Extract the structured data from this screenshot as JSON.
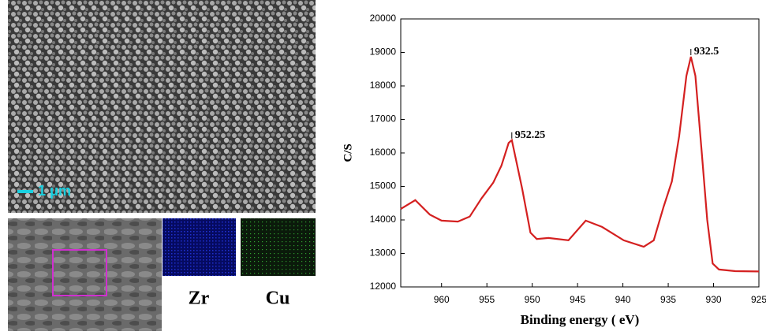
{
  "images": {
    "scale_bar": "1 μm",
    "maps": [
      "Zr",
      "Cu"
    ]
  },
  "chart_data": {
    "type": "line",
    "x_label": "Binding energy (   eV)",
    "y_label": "C/S",
    "x": [
      964.5,
      962.9,
      961.3,
      960.0,
      958.2,
      956.9,
      955.6,
      954.3,
      953.4,
      952.6,
      952.25,
      951.1,
      950.2,
      949.5,
      948.2,
      946.0,
      944.1,
      942.3,
      939.9,
      937.7,
      936.6,
      935.5,
      934.6,
      933.8,
      933.0,
      932.5,
      932.0,
      931.3,
      930.7,
      930.1,
      929.4,
      927.6,
      925.0
    ],
    "series": [
      {
        "name": "C/S",
        "color": "#d42020",
        "values": [
          14330,
          14590,
          14160,
          13980,
          13950,
          14100,
          14640,
          15110,
          15620,
          16300,
          16380,
          14920,
          13620,
          13430,
          13460,
          13390,
          13980,
          13790,
          13390,
          13200,
          13390,
          14400,
          15150,
          16500,
          18300,
          18870,
          18300,
          16000,
          14000,
          12700,
          12520,
          12470,
          12460
        ]
      }
    ],
    "xlim": [
      964.5,
      925
    ],
    "xticks": [
      960,
      955,
      950,
      945,
      940,
      935,
      930,
      925
    ],
    "ylim": [
      12000,
      20000
    ],
    "yticks": [
      12000,
      13000,
      14000,
      15000,
      16000,
      17000,
      18000,
      19000,
      20000
    ],
    "annotations": [
      {
        "text": "952.25",
        "x": 952.25,
        "y": 16380
      },
      {
        "text": "932.5",
        "x": 932.5,
        "y": 18870
      }
    ]
  }
}
